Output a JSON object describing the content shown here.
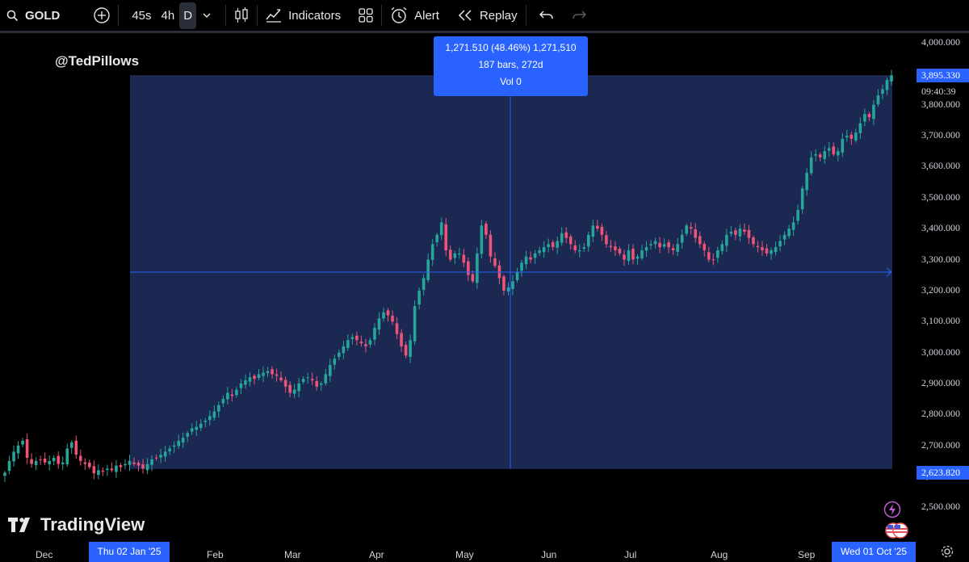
{
  "toolbar": {
    "symbol": "GOLD",
    "intervals": [
      "45s",
      "4h",
      "D"
    ],
    "active_interval": "D",
    "indicators_label": "Indicators",
    "alert_label": "Alert",
    "replay_label": "Replay"
  },
  "watermark": "@TedPillows",
  "logo_text": "TradingView",
  "measure_tooltip": {
    "line1": "1,271.510 (48.46%) 1,271,510",
    "line2": "187 bars, 272d",
    "line3": "Vol 0"
  },
  "price_axis": {
    "ticks": [
      "4,000.000",
      "3,800.000",
      "3,700.000",
      "3,600.000",
      "3,500.000",
      "3,400.000",
      "3,300.000",
      "3,200.000",
      "3,100.000",
      "3,000.000",
      "2,900.000",
      "2,800.000",
      "2,700.000",
      "2,600.000",
      "2,500.000"
    ],
    "current_price": "3,895.330",
    "countdown": "09:40:39",
    "low_badge": "2,623.820"
  },
  "time_axis": {
    "labels": [
      "Dec",
      "Feb",
      "Mar",
      "Apr",
      "May",
      "Jun",
      "Jul",
      "Aug",
      "Sep"
    ],
    "start_badge": "Thu 02 Jan '25",
    "end_badge": "Wed 01 Oct '25"
  },
  "colors": {
    "up": "#26a69a",
    "down": "#ef5378",
    "measure_fill": "#1c2a55",
    "accent": "#2962ff"
  },
  "chart_data": {
    "type": "candlestick",
    "title": "GOLD",
    "interval": "D",
    "ylim": [
      2450,
      4050
    ],
    "measure": {
      "from": "2025-01-02",
      "to": "2025-10-01",
      "low": 2623.82,
      "high": 3895.33,
      "change": 1271.51,
      "change_pct": 48.46,
      "bars": 187,
      "days": 272,
      "volume": 0
    },
    "x_ticks": [
      "Dec",
      "Feb",
      "Mar",
      "Apr",
      "May",
      "Jun",
      "Jul",
      "Aug",
      "Sep"
    ],
    "closes": [
      2612,
      2650,
      2680,
      2700,
      2715,
      2660,
      2640,
      2650,
      2655,
      2645,
      2650,
      2660,
      2640,
      2645,
      2690,
      2710,
      2670,
      2650,
      2640,
      2630,
      2610,
      2620,
      2615,
      2625,
      2620,
      2635,
      2630,
      2640,
      2650,
      2640,
      2635,
      2625,
      2640,
      2655,
      2660,
      2670,
      2680,
      2690,
      2700,
      2715,
      2725,
      2740,
      2755,
      2760,
      2770,
      2780,
      2795,
      2810,
      2830,
      2850,
      2870,
      2860,
      2880,
      2900,
      2910,
      2920,
      2915,
      2930,
      2935,
      2940,
      2930,
      2925,
      2910,
      2890,
      2870,
      2880,
      2900,
      2915,
      2920,
      2910,
      2890,
      2900,
      2930,
      2960,
      2980,
      3000,
      3020,
      3040,
      3050,
      3040,
      3030,
      3020,
      3040,
      3080,
      3110,
      3130,
      3120,
      3100,
      3060,
      3020,
      2990,
      3040,
      3150,
      3200,
      3240,
      3300,
      3350,
      3380,
      3420,
      3330,
      3300,
      3320,
      3320,
      3290,
      3250,
      3230,
      3320,
      3410,
      3380,
      3310,
      3280,
      3240,
      3200,
      3210,
      3230,
      3260,
      3290,
      3310,
      3300,
      3320,
      3330,
      3340,
      3350,
      3340,
      3360,
      3385,
      3370,
      3350,
      3330,
      3330,
      3340,
      3380,
      3410,
      3400,
      3380,
      3350,
      3340,
      3330,
      3320,
      3300,
      3330,
      3300,
      3310,
      3330,
      3340,
      3350,
      3360,
      3340,
      3350,
      3340,
      3330,
      3350,
      3380,
      3410,
      3400,
      3370,
      3350,
      3330,
      3300,
      3300,
      3330,
      3350,
      3380,
      3390,
      3380,
      3400,
      3390,
      3370,
      3350,
      3340,
      3330,
      3320,
      3330,
      3340,
      3360,
      3380,
      3400,
      3420,
      3460,
      3530,
      3580,
      3630,
      3640,
      3630,
      3650,
      3660,
      3640,
      3650,
      3690,
      3700,
      3690,
      3710,
      3740,
      3770,
      3760,
      3800,
      3830,
      3850,
      3880,
      3895
    ]
  }
}
